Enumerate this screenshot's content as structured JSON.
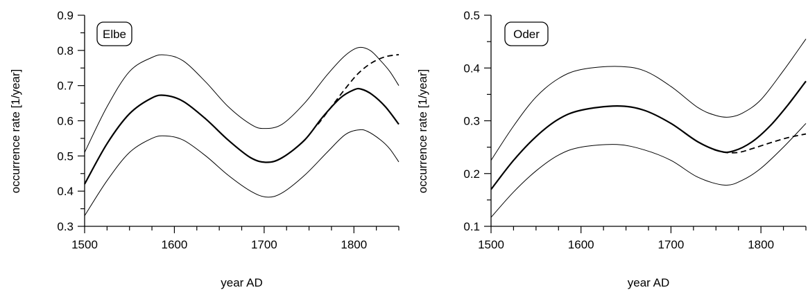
{
  "chart_data": [
    {
      "type": "line",
      "panel_label": "Elbe",
      "xlabel": "year AD",
      "ylabel": "occurrence rate [1/year]",
      "xlim": [
        1500,
        1850
      ],
      "ylim": [
        0.3,
        0.9
      ],
      "xticks": [
        1500,
        1600,
        1700,
        1800
      ],
      "yticks": [
        "0.3",
        "0.4",
        "0.5",
        "0.6",
        "0.7",
        "0.8",
        "0.9"
      ],
      "grid": false,
      "series": [
        {
          "style": "solid-thin",
          "points": [
            [
              1500,
              0.51
            ],
            [
              1525,
              0.64
            ],
            [
              1550,
              0.74
            ],
            [
              1575,
              0.78
            ],
            [
              1590,
              0.787
            ],
            [
              1610,
              0.77
            ],
            [
              1635,
              0.71
            ],
            [
              1660,
              0.64
            ],
            [
              1685,
              0.59
            ],
            [
              1700,
              0.578
            ],
            [
              1720,
              0.59
            ],
            [
              1745,
              0.65
            ],
            [
              1770,
              0.73
            ],
            [
              1790,
              0.785
            ],
            [
              1805,
              0.808
            ],
            [
              1818,
              0.8
            ],
            [
              1830,
              0.77
            ],
            [
              1840,
              0.74
            ],
            [
              1850,
              0.7
            ]
          ]
        },
        {
          "style": "solid-thick",
          "points": [
            [
              1500,
              0.42
            ],
            [
              1525,
              0.535
            ],
            [
              1550,
              0.62
            ],
            [
              1575,
              0.665
            ],
            [
              1590,
              0.672
            ],
            [
              1610,
              0.655
            ],
            [
              1635,
              0.605
            ],
            [
              1660,
              0.545
            ],
            [
              1685,
              0.495
            ],
            [
              1703,
              0.482
            ],
            [
              1720,
              0.495
            ],
            [
              1745,
              0.545
            ],
            [
              1765,
              0.61
            ],
            [
              1785,
              0.665
            ],
            [
              1800,
              0.688
            ],
            [
              1808,
              0.69
            ],
            [
              1820,
              0.675
            ],
            [
              1835,
              0.64
            ],
            [
              1850,
              0.59
            ]
          ]
        },
        {
          "style": "solid-thin",
          "points": [
            [
              1500,
              0.33
            ],
            [
              1525,
              0.43
            ],
            [
              1550,
              0.51
            ],
            [
              1575,
              0.55
            ],
            [
              1590,
              0.557
            ],
            [
              1610,
              0.545
            ],
            [
              1635,
              0.5
            ],
            [
              1660,
              0.445
            ],
            [
              1685,
              0.4
            ],
            [
              1703,
              0.383
            ],
            [
              1720,
              0.395
            ],
            [
              1745,
              0.445
            ],
            [
              1770,
              0.51
            ],
            [
              1790,
              0.56
            ],
            [
              1805,
              0.574
            ],
            [
              1815,
              0.57
            ],
            [
              1830,
              0.545
            ],
            [
              1840,
              0.52
            ],
            [
              1850,
              0.483
            ]
          ]
        },
        {
          "style": "dashed",
          "points": [
            [
              1760,
              0.59
            ],
            [
              1775,
              0.64
            ],
            [
              1790,
              0.69
            ],
            [
              1805,
              0.735
            ],
            [
              1820,
              0.765
            ],
            [
              1835,
              0.782
            ],
            [
              1850,
              0.788
            ]
          ]
        }
      ]
    },
    {
      "type": "line",
      "panel_label": "Oder",
      "xlabel": "year AD",
      "ylabel": "occurrence rate [1/year]",
      "xlim": [
        1500,
        1850
      ],
      "ylim": [
        0.1,
        0.5
      ],
      "xticks": [
        1500,
        1600,
        1700,
        1800
      ],
      "yticks": [
        "0.1",
        "0.2",
        "0.3",
        "0.4",
        "0.5"
      ],
      "grid": false,
      "series": [
        {
          "style": "solid-thin",
          "points": [
            [
              1500,
              0.225
            ],
            [
              1525,
              0.29
            ],
            [
              1550,
              0.345
            ],
            [
              1575,
              0.38
            ],
            [
              1600,
              0.397
            ],
            [
              1640,
              0.403
            ],
            [
              1670,
              0.395
            ],
            [
              1700,
              0.365
            ],
            [
              1730,
              0.325
            ],
            [
              1750,
              0.31
            ],
            [
              1765,
              0.307
            ],
            [
              1780,
              0.315
            ],
            [
              1800,
              0.34
            ],
            [
              1825,
              0.395
            ],
            [
              1850,
              0.455
            ]
          ]
        },
        {
          "style": "solid-thick",
          "points": [
            [
              1500,
              0.17
            ],
            [
              1525,
              0.225
            ],
            [
              1550,
              0.27
            ],
            [
              1575,
              0.303
            ],
            [
              1600,
              0.32
            ],
            [
              1640,
              0.328
            ],
            [
              1670,
              0.32
            ],
            [
              1700,
              0.295
            ],
            [
              1730,
              0.26
            ],
            [
              1755,
              0.242
            ],
            [
              1770,
              0.243
            ],
            [
              1790,
              0.26
            ],
            [
              1810,
              0.29
            ],
            [
              1830,
              0.33
            ],
            [
              1850,
              0.375
            ]
          ]
        },
        {
          "style": "solid-thin",
          "points": [
            [
              1500,
              0.117
            ],
            [
              1525,
              0.165
            ],
            [
              1550,
              0.205
            ],
            [
              1575,
              0.235
            ],
            [
              1600,
              0.25
            ],
            [
              1640,
              0.255
            ],
            [
              1670,
              0.245
            ],
            [
              1700,
              0.225
            ],
            [
              1730,
              0.193
            ],
            [
              1760,
              0.178
            ],
            [
              1780,
              0.188
            ],
            [
              1800,
              0.21
            ],
            [
              1825,
              0.25
            ],
            [
              1850,
              0.295
            ]
          ]
        },
        {
          "style": "dashed",
          "points": [
            [
              1748,
              0.245
            ],
            [
              1760,
              0.24
            ],
            [
              1775,
              0.24
            ],
            [
              1790,
              0.247
            ],
            [
              1810,
              0.258
            ],
            [
              1830,
              0.268
            ],
            [
              1850,
              0.275
            ]
          ]
        }
      ]
    }
  ]
}
